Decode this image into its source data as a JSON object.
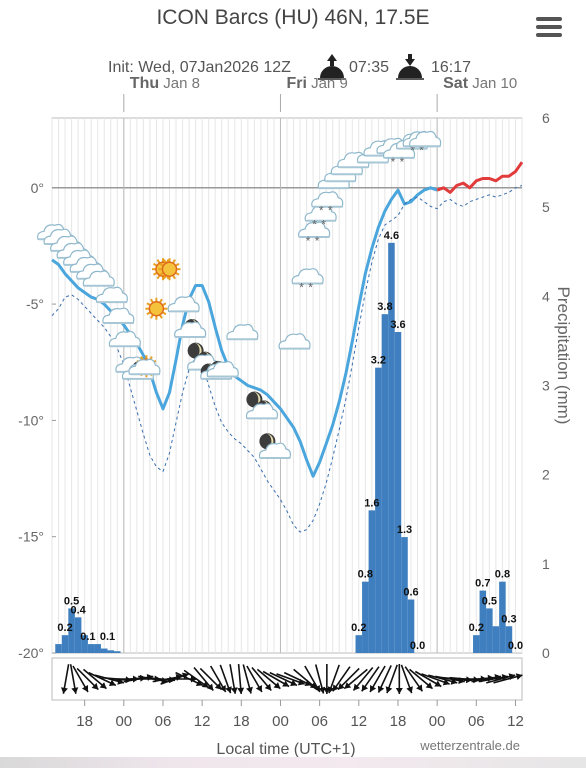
{
  "page": {
    "title": "ICON Barcs (HU) 46N, 17.5E",
    "menu_icon": "hamburger-menu-icon",
    "init_label": "Init: Wed, 07Jan2026 12Z",
    "sunrise_icon": "sunrise-icon",
    "sunrise": "07:35",
    "sunset_icon": "sunset-icon",
    "sunset": "16:17",
    "credit": "wetterzentrale.de"
  },
  "chart_data": {
    "type": "line",
    "xlabel": "Local time (UTC+1)",
    "ylabel_right": "Precipitation (mm)",
    "days": [
      {
        "name": "Thu",
        "date": "Jan 8",
        "hour": 24
      },
      {
        "name": "Fri",
        "date": "Jan 9",
        "hour": 48
      },
      {
        "name": "Sat",
        "date": "Jan 10",
        "hour": 72
      }
    ],
    "x_ticks": [
      {
        "hour": 18,
        "label": "18"
      },
      {
        "hour": 24,
        "label": "00"
      },
      {
        "hour": 30,
        "label": "06"
      },
      {
        "hour": 36,
        "label": "12"
      },
      {
        "hour": 42,
        "label": "18"
      },
      {
        "hour": 48,
        "label": "00"
      },
      {
        "hour": 54,
        "label": "06"
      },
      {
        "hour": 60,
        "label": "12"
      },
      {
        "hour": 66,
        "label": "18"
      },
      {
        "hour": 72,
        "label": "00"
      },
      {
        "hour": 78,
        "label": "06"
      },
      {
        "hour": 84,
        "label": "12"
      }
    ],
    "x_range": [
      13,
      85
    ],
    "y_left": {
      "range": [
        -20,
        3
      ],
      "ticks": [
        0,
        -5,
        -10,
        -15,
        -20
      ],
      "tick_labels": [
        "0°",
        "-5°",
        "-10°",
        "-15°",
        "-20°"
      ]
    },
    "y_right": {
      "range": [
        0,
        6
      ],
      "ticks": [
        0,
        1,
        2,
        3,
        4,
        5,
        6
      ],
      "tick_labels": [
        "0",
        "1",
        "2",
        "3",
        "4",
        "5",
        "6"
      ]
    },
    "grid": true,
    "series": [
      {
        "role": "temperature",
        "color": "#4aa6dc",
        "points": [
          [
            13,
            -3.1
          ],
          [
            14,
            -3.3
          ],
          [
            15,
            -3.7
          ],
          [
            16,
            -4.0
          ],
          [
            17,
            -4.3
          ],
          [
            18,
            -4.5
          ],
          [
            19,
            -4.7
          ],
          [
            20,
            -4.8
          ],
          [
            21,
            -5.0
          ],
          [
            22,
            -5.3
          ],
          [
            23,
            -5.6
          ],
          [
            24,
            -5.9
          ],
          [
            25,
            -6.3
          ],
          [
            26,
            -6.7
          ],
          [
            27,
            -7.2
          ],
          [
            28,
            -7.9
          ],
          [
            29,
            -8.8
          ],
          [
            30,
            -9.5
          ],
          [
            31,
            -8.8
          ],
          [
            32,
            -7.4
          ],
          [
            33,
            -5.9
          ],
          [
            34,
            -4.8
          ],
          [
            35,
            -4.2
          ],
          [
            36,
            -4.2
          ],
          [
            37,
            -4.9
          ],
          [
            38,
            -6.0
          ],
          [
            39,
            -7.0
          ],
          [
            40,
            -7.7
          ],
          [
            41,
            -8.1
          ],
          [
            42,
            -8.3
          ],
          [
            43,
            -8.5
          ],
          [
            44,
            -8.6
          ],
          [
            45,
            -8.7
          ],
          [
            46,
            -8.9
          ],
          [
            47,
            -9.2
          ],
          [
            48,
            -9.5
          ],
          [
            49,
            -9.9
          ],
          [
            50,
            -10.3
          ],
          [
            51,
            -10.9
          ],
          [
            52,
            -11.7
          ],
          [
            53,
            -12.4
          ],
          [
            54,
            -11.8
          ],
          [
            55,
            -11.0
          ],
          [
            56,
            -10.2
          ],
          [
            57,
            -9.2
          ],
          [
            58,
            -8.0
          ],
          [
            59,
            -6.6
          ],
          [
            60,
            -5.1
          ],
          [
            61,
            -3.7
          ],
          [
            62,
            -2.6
          ],
          [
            63,
            -1.7
          ],
          [
            64,
            -1.0
          ],
          [
            65,
            -0.5
          ],
          [
            66,
            -0.1
          ],
          [
            67,
            -0.7
          ],
          [
            68,
            -0.6
          ],
          [
            69,
            -0.3
          ],
          [
            70,
            -0.1
          ],
          [
            71,
            0.0
          ],
          [
            72,
            -0.1
          ]
        ]
      },
      {
        "role": "temperature",
        "color": "#e23b3b",
        "points": [
          [
            72,
            -0.1
          ],
          [
            73,
            0.0
          ],
          [
            74,
            -0.2
          ],
          [
            75,
            0.1
          ],
          [
            76,
            0.2
          ],
          [
            77,
            0.0
          ],
          [
            78,
            0.3
          ],
          [
            79,
            0.4
          ],
          [
            80,
            0.4
          ],
          [
            81,
            0.3
          ],
          [
            82,
            0.5
          ],
          [
            83,
            0.5
          ],
          [
            84,
            0.7
          ],
          [
            85,
            1.1
          ]
        ]
      },
      {
        "role": "dewpoint",
        "color": "#3a6fb0",
        "dashed": true,
        "points": [
          [
            13,
            -5.5
          ],
          [
            14,
            -5.2
          ],
          [
            15,
            -4.7
          ],
          [
            16,
            -4.6
          ],
          [
            17,
            -4.8
          ],
          [
            18,
            -5.1
          ],
          [
            19,
            -5.4
          ],
          [
            20,
            -5.7
          ],
          [
            21,
            -6.0
          ],
          [
            22,
            -6.4
          ],
          [
            23,
            -6.9
          ],
          [
            24,
            -7.6
          ],
          [
            25,
            -8.6
          ],
          [
            26,
            -9.6
          ],
          [
            27,
            -10.6
          ],
          [
            28,
            -11.5
          ],
          [
            29,
            -12.0
          ],
          [
            30,
            -12.2
          ],
          [
            31,
            -11.4
          ],
          [
            32,
            -10.1
          ],
          [
            33,
            -8.8
          ],
          [
            34,
            -7.8
          ],
          [
            35,
            -7.3
          ],
          [
            36,
            -7.6
          ],
          [
            37,
            -8.5
          ],
          [
            38,
            -9.4
          ],
          [
            39,
            -10.1
          ],
          [
            40,
            -10.5
          ],
          [
            41,
            -10.8
          ],
          [
            42,
            -11.0
          ],
          [
            43,
            -11.3
          ],
          [
            44,
            -11.6
          ],
          [
            45,
            -12.1
          ],
          [
            46,
            -12.6
          ],
          [
            47,
            -13.0
          ],
          [
            48,
            -13.4
          ],
          [
            49,
            -13.9
          ],
          [
            50,
            -14.5
          ],
          [
            51,
            -14.8
          ],
          [
            52,
            -14.7
          ],
          [
            53,
            -14.3
          ],
          [
            54,
            -13.6
          ],
          [
            55,
            -12.7
          ],
          [
            56,
            -11.6
          ],
          [
            57,
            -10.4
          ],
          [
            58,
            -9.1
          ],
          [
            59,
            -7.6
          ],
          [
            60,
            -6.0
          ],
          [
            61,
            -4.5
          ],
          [
            62,
            -3.2
          ],
          [
            63,
            -2.2
          ],
          [
            64,
            -1.6
          ],
          [
            65,
            -1.4
          ],
          [
            66,
            -1.2
          ],
          [
            67,
            -0.7
          ],
          [
            68,
            -0.5
          ],
          [
            69,
            -0.4
          ],
          [
            70,
            -0.6
          ],
          [
            71,
            -0.8
          ],
          [
            72,
            -0.9
          ],
          [
            73,
            -0.6
          ],
          [
            74,
            -0.5
          ],
          [
            75,
            -0.7
          ],
          [
            76,
            -0.8
          ],
          [
            77,
            -0.6
          ],
          [
            78,
            -0.5
          ],
          [
            79,
            -0.4
          ],
          [
            80,
            -0.3
          ],
          [
            81,
            -0.4
          ],
          [
            82,
            -0.3
          ],
          [
            83,
            -0.2
          ],
          [
            84,
            0.0
          ],
          [
            85,
            0.1
          ]
        ]
      }
    ],
    "precipitation": {
      "color": "#3f7fbf",
      "bars": [
        [
          14,
          0.1
        ],
        [
          15,
          0.2
        ],
        [
          16,
          0.5
        ],
        [
          17,
          0.4
        ],
        [
          18,
          0.2
        ],
        [
          19,
          0.1
        ],
        [
          20,
          0.1
        ],
        [
          21,
          0.05
        ],
        [
          22,
          0.03
        ],
        [
          23,
          0.02
        ],
        [
          60,
          0.2
        ],
        [
          61,
          0.8
        ],
        [
          62,
          1.6
        ],
        [
          63,
          3.2
        ],
        [
          64,
          3.8
        ],
        [
          65,
          4.6
        ],
        [
          66,
          3.6
        ],
        [
          67,
          1.3
        ],
        [
          68,
          0.6
        ],
        [
          69,
          0.0
        ],
        [
          78,
          0.2
        ],
        [
          79,
          0.7
        ],
        [
          80,
          0.5
        ],
        [
          81,
          0.3
        ],
        [
          82,
          0.8
        ],
        [
          83,
          0.3
        ],
        [
          84,
          0.0
        ]
      ],
      "labels": [
        {
          "hour": 15,
          "value": "0.2"
        },
        {
          "hour": 16,
          "value": "0.5"
        },
        {
          "hour": 17,
          "value": "0.4"
        },
        {
          "hour": 18.5,
          "value": "0.1"
        },
        {
          "hour": 21.5,
          "value": "0.1"
        },
        {
          "hour": 60,
          "value": "0.2"
        },
        {
          "hour": 61,
          "value": "0.8"
        },
        {
          "hour": 62,
          "value": "1.6"
        },
        {
          "hour": 63,
          "value": "3.2"
        },
        {
          "hour": 64,
          "value": "3.8"
        },
        {
          "hour": 65,
          "value": "4.6"
        },
        {
          "hour": 66,
          "value": "3.6"
        },
        {
          "hour": 67,
          "value": "1.3"
        },
        {
          "hour": 68,
          "value": "0.6"
        },
        {
          "hour": 69,
          "value": "0.0"
        },
        {
          "hour": 78,
          "value": "0.2"
        },
        {
          "hour": 79,
          "value": "0.7"
        },
        {
          "hour": 80,
          "value": "0.5"
        },
        {
          "hour": 82,
          "value": "0.8"
        },
        {
          "hour": 83,
          "value": "0.3"
        },
        {
          "hour": 84,
          "value": "0.0"
        }
      ]
    },
    "weather_icons": [
      {
        "hour": 13,
        "temp": -2.0,
        "icon": "cloud-icon"
      },
      {
        "hour": 14,
        "temp": -2.2,
        "icon": "cloud-icon"
      },
      {
        "hour": 15,
        "temp": -2.5,
        "icon": "cloud-icon"
      },
      {
        "hour": 16,
        "temp": -2.8,
        "icon": "cloud-icon"
      },
      {
        "hour": 17,
        "temp": -3.1,
        "icon": "cloud-icon"
      },
      {
        "hour": 18,
        "temp": -3.4,
        "icon": "cloud-icon"
      },
      {
        "hour": 19,
        "temp": -3.7,
        "icon": "cloud-icon"
      },
      {
        "hour": 20,
        "temp": -4.0,
        "icon": "cloud-icon"
      },
      {
        "hour": 22,
        "temp": -4.7,
        "icon": "cloud-icon"
      },
      {
        "hour": 23,
        "temp": -5.6,
        "icon": "cloud-icon"
      },
      {
        "hour": 24,
        "temp": -6.6,
        "icon": "cloud-icon"
      },
      {
        "hour": 25,
        "temp": -7.7,
        "icon": "cloud-icon"
      },
      {
        "hour": 26,
        "temp": -8.0,
        "icon": "moon-cloud-icon"
      },
      {
        "hour": 27,
        "temp": -7.8,
        "icon": "sun-cloud-icon"
      },
      {
        "hour": 29,
        "temp": -5.2,
        "icon": "sun-icon"
      },
      {
        "hour": 30,
        "temp": -3.5,
        "icon": "sun-icon"
      },
      {
        "hour": 31,
        "temp": -3.5,
        "icon": "sun-icon"
      },
      {
        "hour": 33,
        "temp": -5.1,
        "icon": "cloud-icon"
      },
      {
        "hour": 34,
        "temp": -6.2,
        "icon": "moon-cloud-icon"
      },
      {
        "hour": 35,
        "temp": -7.0,
        "icon": "moon-icon"
      },
      {
        "hour": 36,
        "temp": -7.6,
        "icon": "moon-cloud-icon"
      },
      {
        "hour": 37,
        "temp": -7.9,
        "icon": "moon-icon"
      },
      {
        "hour": 38,
        "temp": -8.0,
        "icon": "moon-cloud-icon"
      },
      {
        "hour": 39,
        "temp": -7.9,
        "icon": "cloud-icon"
      },
      {
        "hour": 42,
        "temp": -6.3,
        "icon": "cloud-icon"
      },
      {
        "hour": 44,
        "temp": -9.1,
        "icon": "moon-icon"
      },
      {
        "hour": 45,
        "temp": -9.7,
        "icon": "moon-cloud-icon"
      },
      {
        "hour": 46,
        "temp": -10.9,
        "icon": "moon-icon"
      },
      {
        "hour": 47,
        "temp": -11.4,
        "icon": "cloud-icon"
      },
      {
        "hour": 50,
        "temp": -6.7,
        "icon": "cloud-icon"
      },
      {
        "hour": 52,
        "temp": -3.9,
        "icon": "cloud-snow-icon"
      },
      {
        "hour": 53,
        "temp": -1.9,
        "icon": "cloud-snow-icon"
      },
      {
        "hour": 54,
        "temp": -1.2,
        "icon": "cloud-snow-icon"
      },
      {
        "hour": 55,
        "temp": -0.6,
        "icon": "cloud-snow-icon"
      },
      {
        "hour": 56,
        "temp": 0.2,
        "icon": "cloud-icon"
      },
      {
        "hour": 57,
        "temp": 0.5,
        "icon": "cloud-icon"
      },
      {
        "hour": 58,
        "temp": 0.8,
        "icon": "cloud-icon"
      },
      {
        "hour": 59,
        "temp": 1.1,
        "icon": "cloud-icon"
      },
      {
        "hour": 62,
        "temp": 1.3,
        "icon": "cloud-icon"
      },
      {
        "hour": 63,
        "temp": 1.6,
        "icon": "cloud-icon"
      },
      {
        "hour": 65,
        "temp": 1.7,
        "icon": "cloud-icon"
      },
      {
        "hour": 66,
        "temp": 1.5,
        "icon": "cloud-snow-icon"
      },
      {
        "hour": 68,
        "temp": 1.9,
        "icon": "cloud-icon"
      },
      {
        "hour": 69,
        "temp": 2.0,
        "icon": "cloud-snow-icon"
      },
      {
        "hour": 70,
        "temp": 2.0,
        "icon": "cloud-icon"
      }
    ],
    "wind_arrows_deg": [
      190,
      170,
      150,
      135,
      130,
      115,
      105,
      95,
      90,
      85,
      80,
      90,
      100,
      95,
      80,
      70,
      90,
      115,
      125,
      140,
      135,
      150,
      160,
      170,
      175,
      165,
      150,
      140,
      130,
      120,
      115,
      110,
      115,
      130,
      150,
      165,
      180,
      200,
      215,
      225,
      230,
      220,
      215,
      210,
      205,
      200,
      180,
      160,
      145,
      130,
      120,
      110,
      105,
      100,
      95,
      95,
      90,
      85,
      80,
      80,
      75,
      75
    ]
  }
}
